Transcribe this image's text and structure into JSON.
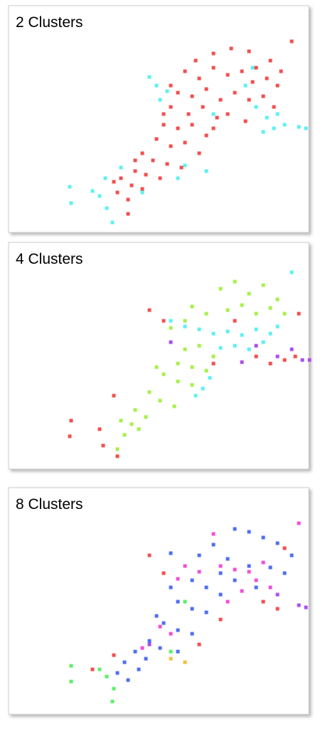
{
  "chart_data": [
    {
      "type": "scatter",
      "title": "2 Clusters",
      "xlim": [
        0,
        422
      ],
      "ylim": [
        318,
        0
      ],
      "series": [
        {
          "color": "#f24f4f",
          "x": [
            288,
            313,
            338,
            368,
            398,
            248,
            268,
            288,
            308,
            328,
            348,
            363,
            378,
            238,
            258,
            278,
            298,
            318,
            338,
            358,
            373,
            228,
            253,
            273,
            293,
            308,
            333,
            218,
            238,
            258,
            278,
            208,
            228,
            248,
            268,
            188,
            203,
            223,
            243,
            178,
            193,
            213,
            158,
            173,
            188,
            153,
            168,
            178,
            218,
            343,
            383,
            263,
            228,
            288,
            168,
            148
          ],
          "y": [
            67,
            60,
            64,
            77,
            50,
            92,
            102,
            87,
            97,
            92,
            87,
            102,
            112,
            122,
            127,
            117,
            132,
            122,
            132,
            127,
            142,
            142,
            152,
            142,
            157,
            152,
            162,
            167,
            172,
            167,
            182,
            187,
            197,
            192,
            207,
            207,
            217,
            222,
            227,
            232,
            237,
            242,
            242,
            252,
            257,
            262,
            272,
            217,
            152,
            107,
            92,
            77,
            112,
            172,
            292,
            247
          ]
        },
        {
          "color": "#5ef0f0",
          "x": [
            86,
            88,
            118,
            128,
            138,
            146,
            136,
            198,
            208,
            223,
            213,
            348,
            363,
            373,
            388,
            408,
            418,
            358,
            333,
            378,
            248,
            238,
            278,
            188,
            158,
            343,
            288
          ],
          "y": [
            254,
            277,
            260,
            267,
            284,
            304,
            242,
            100,
            112,
            120,
            132,
            142,
            157,
            172,
            167,
            170,
            172,
            177,
            112,
            152,
            224,
            242,
            232,
            262,
            227,
            87,
            152
          ]
        }
      ]
    },
    {
      "type": "scatter",
      "title": "4 Clusters",
      "xlim": [
        0,
        422
      ],
      "ylim": [
        318,
        0
      ],
      "series": [
        {
          "color": "#a6f04a",
          "x": [
            318,
            298,
            338,
            358,
            378,
            258,
            278,
            308,
            328,
            348,
            368,
            228,
            248,
            268,
            288,
            238,
            258,
            278,
            218,
            238,
            258,
            198,
            213,
            233,
            178,
            193,
            173,
            158,
            163,
            183,
            153,
            208,
            228,
            388,
            248
          ],
          "y": [
            55,
            65,
            72,
            60,
            80,
            90,
            100,
            95,
            88,
            100,
            92,
            140,
            150,
            145,
            160,
            170,
            175,
            180,
            185,
            195,
            200,
            210,
            222,
            230,
            235,
            245,
            255,
            250,
            270,
            262,
            290,
            175,
            120,
            100,
            110
          ]
        },
        {
          "color": "#5ef0f0",
          "x": [
            228,
            248,
            268,
            288,
            308,
            328,
            348,
            368,
            318,
            338,
            358,
            298,
            378,
            263,
            273,
            283,
            398
          ],
          "y": [
            110,
            118,
            122,
            128,
            125,
            130,
            122,
            128,
            145,
            150,
            140,
            148,
            118,
            215,
            205,
            190,
            42
          ]
        },
        {
          "color": "#f24f4f",
          "x": [
            198,
            218,
            348,
            368,
            388,
            403,
            88,
            86,
            128,
            148,
            133,
            153,
            408,
            318,
            288
          ],
          "y": [
            95,
            110,
            160,
            170,
            165,
            160,
            250,
            272,
            262,
            215,
            285,
            300,
            100,
            110,
            170
          ]
        },
        {
          "color": "#a84ff0",
          "x": [
            348,
            378,
            398,
            413,
            423,
            228,
            328
          ],
          "y": [
            145,
            160,
            150,
            165,
            165,
            140,
            168
          ]
        }
      ]
    },
    {
      "type": "scatter",
      "title": "8 Clusters",
      "xlim": [
        0,
        422
      ],
      "ylim": [
        318,
        0
      ],
      "series": [
        {
          "color": "#4f6ff0",
          "x": [
            318,
            338,
            358,
            378,
            398,
            288,
            268,
            308,
            338,
            368,
            228,
            258,
            278,
            298,
            238,
            258,
            278,
            218,
            238,
            258,
            198,
            213,
            178,
            163,
            183,
            153,
            168,
            228,
            208,
            318,
            348,
            388,
            298,
            238,
            193
          ],
          "y": [
            58,
            62,
            70,
            78,
            95,
            80,
            95,
            100,
            110,
            112,
            92,
            130,
            140,
            150,
            160,
            170,
            175,
            190,
            200,
            205,
            215,
            225,
            230,
            245,
            255,
            260,
            270,
            140,
            180,
            130,
            140,
            120,
            120,
            230,
            240
          ]
        },
        {
          "color": "#f050d8",
          "x": [
            248,
            268,
            238,
            298,
            318,
            338,
            358,
            348,
            368,
            328,
            308,
            408,
            288,
            228,
            213,
            188
          ],
          "y": [
            110,
            118,
            128,
            110,
            115,
            118,
            105,
            130,
            140,
            145,
            160,
            50,
            65,
            205,
            195,
            225
          ]
        },
        {
          "color": "#f24f4f",
          "x": [
            198,
            218,
            358,
            378,
            118,
            268,
            148,
            388,
            298
          ],
          "y": [
            95,
            120,
            160,
            170,
            255,
            220,
            235,
            85,
            185
          ]
        },
        {
          "color": "#5cf06a",
          "x": [
            88,
            88,
            128,
            138,
            148,
            146,
            248,
            228
          ],
          "y": [
            250,
            272,
            255,
            265,
            282,
            300,
            160,
            230
          ]
        },
        {
          "color": "#a84ff0",
          "x": [
            408,
            418,
            378,
            198
          ],
          "y": [
            165,
            168,
            150,
            220
          ]
        },
        {
          "color": "#f0c040",
          "x": [
            228,
            248
          ],
          "y": [
            240,
            245
          ]
        }
      ]
    }
  ]
}
